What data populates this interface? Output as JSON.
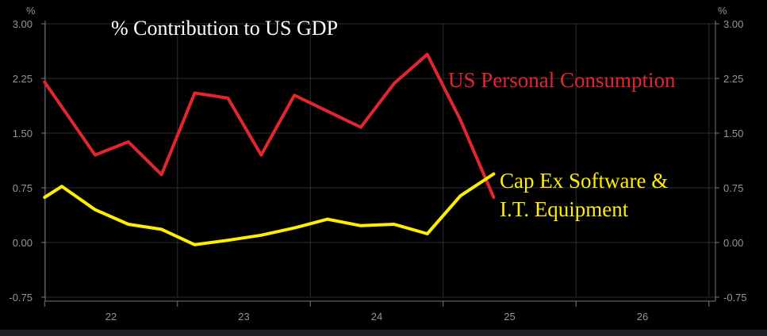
{
  "chart_data": {
    "type": "line",
    "title": "% Contribution to US GDP",
    "y_unit_left": "%",
    "y_unit_right": "%",
    "ylim": [
      -0.75,
      3.0
    ],
    "yticks": [
      3.0,
      2.25,
      1.5,
      0.75,
      0.0,
      -0.75
    ],
    "ytick_labels": [
      "3.00",
      "2.25",
      "1.50",
      "0.75",
      "0.00",
      "-0.75"
    ],
    "xlim": [
      2021.5,
      2026.75
    ],
    "xticks": [
      2022,
      2023,
      2024,
      2025,
      2026
    ],
    "xtick_labels": [
      "22",
      "23",
      "24",
      "25",
      "26"
    ],
    "grid": true,
    "series": [
      {
        "name": "US Personal Consumption",
        "color": "#e3262e",
        "x": [
          2021.5,
          2021.88,
          2022.13,
          2022.38,
          2022.63,
          2022.88,
          2023.13,
          2023.38,
          2023.63,
          2023.88,
          2024.13,
          2024.38,
          2024.63,
          2024.88
        ],
        "values": [
          2.2,
          1.2,
          1.38,
          0.93,
          2.05,
          1.98,
          1.2,
          2.02,
          1.8,
          1.58,
          2.18,
          2.58,
          1.68,
          0.62
        ]
      },
      {
        "name": "Cap Ex Software & I.T. Equipment",
        "color": "#ffee00",
        "x": [
          2021.5,
          2021.63,
          2021.88,
          2022.13,
          2022.38,
          2022.63,
          2022.88,
          2023.13,
          2023.38,
          2023.63,
          2023.88,
          2024.13,
          2024.38,
          2024.63,
          2024.88
        ],
        "values": [
          0.62,
          0.77,
          0.45,
          0.25,
          0.18,
          -0.03,
          0.03,
          0.1,
          0.2,
          0.32,
          0.23,
          0.25,
          0.12,
          0.64,
          0.94
        ]
      }
    ],
    "annotations": [
      {
        "series": 0,
        "lines": [
          "US Personal Consumption"
        ]
      },
      {
        "series": 1,
        "lines": [
          "Cap Ex Software &",
          "I.T. Equipment"
        ]
      }
    ]
  },
  "colors": {
    "background": "#000000",
    "grid": "#2a2e35",
    "tick_text": "#8f96a3",
    "title": "#ffffff"
  }
}
